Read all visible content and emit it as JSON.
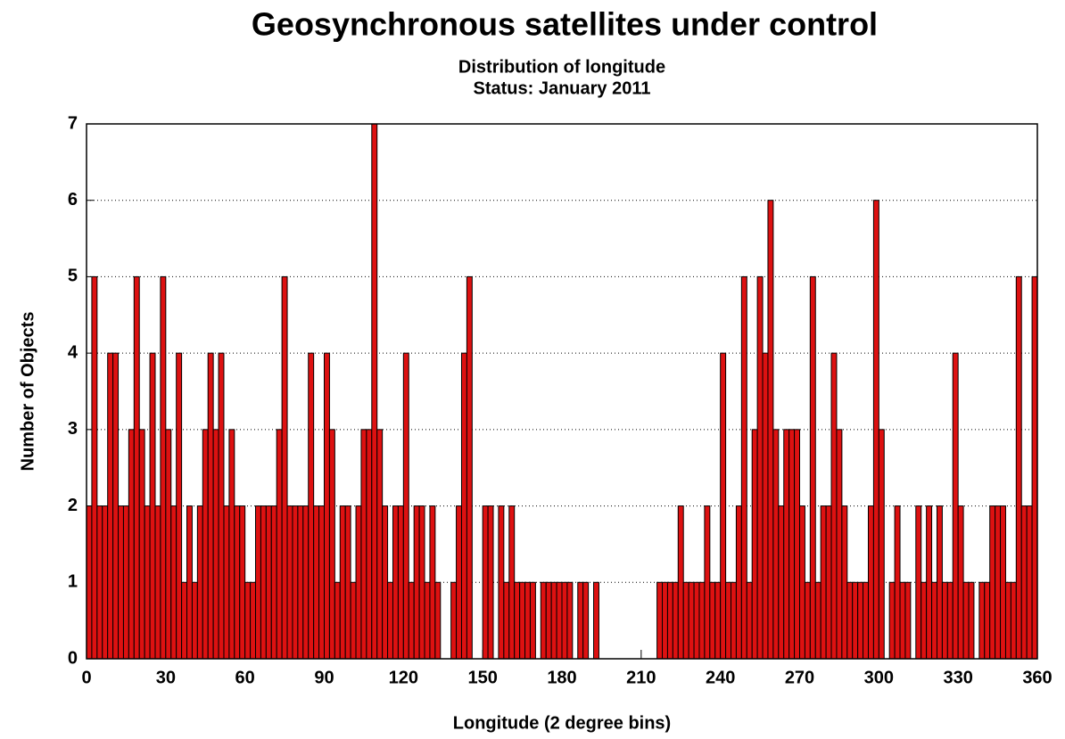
{
  "chart_data": {
    "type": "histogram",
    "title": "Geosynchronous satellites under control",
    "subtitle": [
      "Distribution of longitude",
      "Status: January 2011"
    ],
    "x_label": "Longitude (2 degree bins)",
    "y_label": "Number of Objects",
    "bins": [
      0,
      2,
      4,
      6,
      8,
      10,
      12,
      14,
      16,
      18,
      20,
      22,
      24,
      26,
      28,
      30,
      32,
      34,
      36,
      38,
      40,
      42,
      44,
      46,
      48,
      50,
      52,
      54,
      56,
      58,
      60,
      62,
      64,
      66,
      68,
      70,
      72,
      74,
      76,
      78,
      80,
      82,
      84,
      86,
      88,
      90,
      92,
      94,
      96,
      98,
      100,
      102,
      104,
      106,
      108,
      110,
      112,
      114,
      116,
      118,
      120,
      122,
      124,
      126,
      128,
      130,
      132,
      134,
      136,
      138,
      140,
      142,
      144,
      146,
      148,
      150,
      152,
      154,
      156,
      158,
      160,
      162,
      164,
      166,
      168,
      170,
      172,
      174,
      176,
      178,
      180,
      182,
      184,
      186,
      188,
      190,
      192,
      194,
      196,
      198,
      200,
      202,
      204,
      206,
      208,
      210,
      212,
      214,
      216,
      218,
      220,
      222,
      224,
      226,
      228,
      230,
      232,
      234,
      236,
      238,
      240,
      242,
      244,
      246,
      248,
      250,
      252,
      254,
      256,
      258,
      260,
      262,
      264,
      266,
      268,
      270,
      272,
      274,
      276,
      278,
      280,
      282,
      284,
      286,
      288,
      290,
      292,
      294,
      296,
      298,
      300,
      302,
      304,
      306,
      308,
      310,
      312,
      314,
      316,
      318,
      320,
      322,
      324,
      326,
      328,
      330,
      332,
      334,
      336,
      338,
      340,
      342,
      344,
      346,
      348,
      350,
      352,
      354,
      356,
      358,
      360
    ],
    "values": [
      2,
      5,
      2,
      2,
      4,
      4,
      2,
      2,
      3,
      5,
      3,
      2,
      4,
      2,
      5,
      3,
      2,
      4,
      1,
      2,
      1,
      2,
      3,
      4,
      3,
      4,
      2,
      3,
      2,
      2,
      1,
      1,
      2,
      2,
      2,
      2,
      3,
      5,
      2,
      2,
      2,
      2,
      4,
      2,
      2,
      4,
      3,
      1,
      2,
      2,
      1,
      2,
      3,
      3,
      7,
      3,
      2,
      1,
      2,
      2,
      4,
      1,
      2,
      2,
      1,
      2,
      1,
      0,
      0,
      1,
      2,
      4,
      5,
      0,
      0,
      2,
      2,
      0,
      2,
      1,
      2,
      1,
      1,
      1,
      1,
      0,
      1,
      1,
      1,
      1,
      1,
      1,
      0,
      1,
      1,
      0,
      1,
      0,
      0,
      0,
      0,
      0,
      0,
      0,
      0,
      0,
      0,
      0,
      1,
      1,
      1,
      1,
      2,
      1,
      1,
      1,
      1,
      2,
      1,
      1,
      4,
      1,
      1,
      2,
      5,
      1,
      3,
      5,
      4,
      6,
      3,
      2,
      3,
      3,
      3,
      2,
      1,
      5,
      1,
      2,
      2,
      4,
      3,
      2,
      1,
      1,
      1,
      1,
      2,
      6,
      3,
      0,
      1,
      2,
      1,
      1,
      0,
      2,
      1,
      2,
      1,
      2,
      1,
      1,
      4,
      2,
      1,
      1,
      0,
      1,
      1,
      2,
      2,
      2,
      1,
      1,
      5,
      2,
      2,
      5
    ],
    "color": "#dd1111",
    "xlim": [
      0,
      360
    ],
    "xticks": [
      0,
      30,
      60,
      90,
      120,
      150,
      180,
      210,
      240,
      270,
      300,
      330,
      360
    ],
    "ylim": [
      0,
      7
    ],
    "yticks": [
      0,
      1,
      2,
      3,
      4,
      5,
      6,
      7
    ],
    "grid": true
  }
}
